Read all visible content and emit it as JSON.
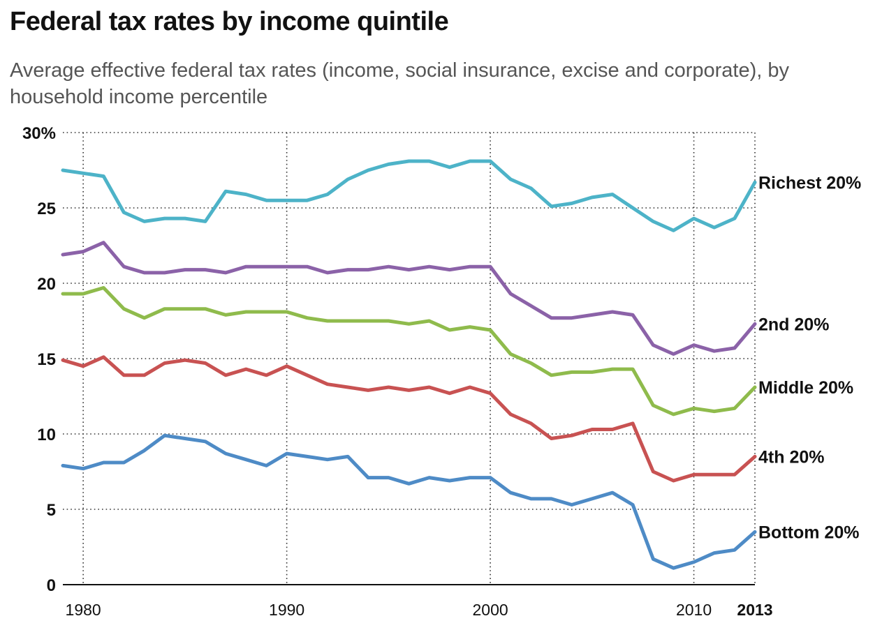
{
  "title": "Federal tax rates by income quintile",
  "subtitle": "Average effective federal tax rates (income, social insurance, excise and corporate), by household income percentile",
  "chart_data": {
    "type": "line",
    "title": "Federal tax rates by income quintile",
    "subtitle": "Average effective federal tax rates (income, social insurance, excise and corporate), by household income percentile",
    "xlabel": "",
    "ylabel": "",
    "x": [
      1979,
      1980,
      1981,
      1982,
      1983,
      1984,
      1985,
      1986,
      1987,
      1988,
      1989,
      1990,
      1991,
      1992,
      1993,
      1994,
      1995,
      1996,
      1997,
      1998,
      1999,
      2000,
      2001,
      2002,
      2003,
      2004,
      2005,
      2006,
      2007,
      2008,
      2009,
      2010,
      2011,
      2012,
      2013
    ],
    "xlim": [
      1979,
      2013
    ],
    "ylim": [
      0,
      30
    ],
    "x_ticks": [
      {
        "value": 1980,
        "label": "1980"
      },
      {
        "value": 1990,
        "label": "1990"
      },
      {
        "value": 2000,
        "label": "2000"
      },
      {
        "value": 2010,
        "label": "2010"
      },
      {
        "value": 2013,
        "label": "2013",
        "bold": true
      }
    ],
    "y_ticks": [
      {
        "value": 0,
        "label": "0"
      },
      {
        "value": 5,
        "label": "5"
      },
      {
        "value": 10,
        "label": "10"
      },
      {
        "value": 15,
        "label": "15"
      },
      {
        "value": 20,
        "label": "20"
      },
      {
        "value": 25,
        "label": "25"
      },
      {
        "value": 30,
        "label": "30%"
      }
    ],
    "grid": true,
    "legend": "direct labels at right end of lines",
    "series": [
      {
        "name": "Richest 20%",
        "color": "#4db3c8",
        "values": [
          27.5,
          27.3,
          27.1,
          24.7,
          24.1,
          24.3,
          24.3,
          24.1,
          26.1,
          25.9,
          25.5,
          25.5,
          25.5,
          25.9,
          26.9,
          27.5,
          27.9,
          28.1,
          28.1,
          27.7,
          28.1,
          28.1,
          26.9,
          26.3,
          25.1,
          25.3,
          25.7,
          25.9,
          25.0,
          24.1,
          23.5,
          24.3,
          23.7,
          24.3,
          26.7
        ]
      },
      {
        "name": "2nd 20%",
        "color": "#8b62a8",
        "values": [
          21.9,
          22.1,
          22.7,
          21.1,
          20.7,
          20.7,
          20.9,
          20.9,
          20.7,
          21.1,
          21.1,
          21.1,
          21.1,
          20.7,
          20.9,
          20.9,
          21.1,
          20.9,
          21.1,
          20.9,
          21.1,
          21.1,
          19.3,
          18.5,
          17.7,
          17.7,
          17.9,
          18.1,
          17.9,
          15.9,
          15.3,
          15.9,
          15.5,
          15.7,
          17.3
        ]
      },
      {
        "name": "Middle 20%",
        "color": "#8fbb4c",
        "values": [
          19.3,
          19.3,
          19.7,
          18.3,
          17.7,
          18.3,
          18.3,
          18.3,
          17.9,
          18.1,
          18.1,
          18.1,
          17.7,
          17.5,
          17.5,
          17.5,
          17.5,
          17.3,
          17.5,
          16.9,
          17.1,
          16.9,
          15.3,
          14.7,
          13.9,
          14.1,
          14.1,
          14.3,
          14.3,
          11.9,
          11.3,
          11.7,
          11.5,
          11.7,
          13.1
        ]
      },
      {
        "name": "4th 20%",
        "color": "#c85252",
        "values": [
          14.9,
          14.5,
          15.1,
          13.9,
          13.9,
          14.7,
          14.9,
          14.7,
          13.9,
          14.3,
          13.9,
          14.5,
          13.9,
          13.3,
          13.1,
          12.9,
          13.1,
          12.9,
          13.1,
          12.7,
          13.1,
          12.7,
          11.3,
          10.7,
          9.7,
          9.9,
          10.3,
          10.3,
          10.7,
          7.5,
          6.9,
          7.3,
          7.3,
          7.3,
          8.5
        ]
      },
      {
        "name": "Bottom 20%",
        "color": "#4e8bc6",
        "values": [
          7.9,
          7.7,
          8.1,
          8.1,
          8.9,
          9.9,
          9.7,
          9.5,
          8.7,
          8.3,
          7.9,
          8.7,
          8.5,
          8.3,
          8.5,
          7.1,
          7.1,
          6.7,
          7.1,
          6.9,
          7.1,
          7.1,
          6.1,
          5.7,
          5.7,
          5.3,
          5.7,
          6.1,
          5.3,
          1.7,
          1.1,
          1.5,
          2.1,
          2.3,
          3.5
        ]
      }
    ]
  }
}
